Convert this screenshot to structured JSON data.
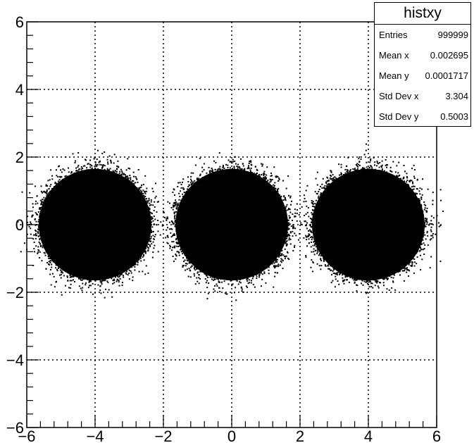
{
  "chart_data": {
    "type": "scatter",
    "title": "",
    "xlabel": "",
    "ylabel": "",
    "xlim": [
      -6,
      6
    ],
    "ylim": [
      -6,
      6
    ],
    "x_ticks": [
      "-6",
      "-4",
      "-2",
      "0",
      "2",
      "4",
      "6"
    ],
    "y_ticks": [
      "-6",
      "-4",
      "-2",
      "0",
      "2",
      "4",
      "6"
    ],
    "grid": true,
    "marker_color": "#000000",
    "clusters": [
      {
        "center_x": -4,
        "center_y": 0,
        "std_x": 0.5,
        "std_y": 0.5
      },
      {
        "center_x": 0,
        "center_y": 0,
        "std_x": 0.5,
        "std_y": 0.5
      },
      {
        "center_x": 4,
        "center_y": 0,
        "std_x": 0.5,
        "std_y": 0.5
      }
    ]
  },
  "stats": {
    "title": "histxy",
    "rows": [
      {
        "label": "Entries",
        "value": "999999"
      },
      {
        "label": "Mean x",
        "value": "0.002695"
      },
      {
        "label": "Mean y",
        "value": "0.0001717"
      },
      {
        "label": "Std Dev x",
        "value": "3.304"
      },
      {
        "label": "Std Dev y",
        "value": "0.5003"
      }
    ]
  }
}
